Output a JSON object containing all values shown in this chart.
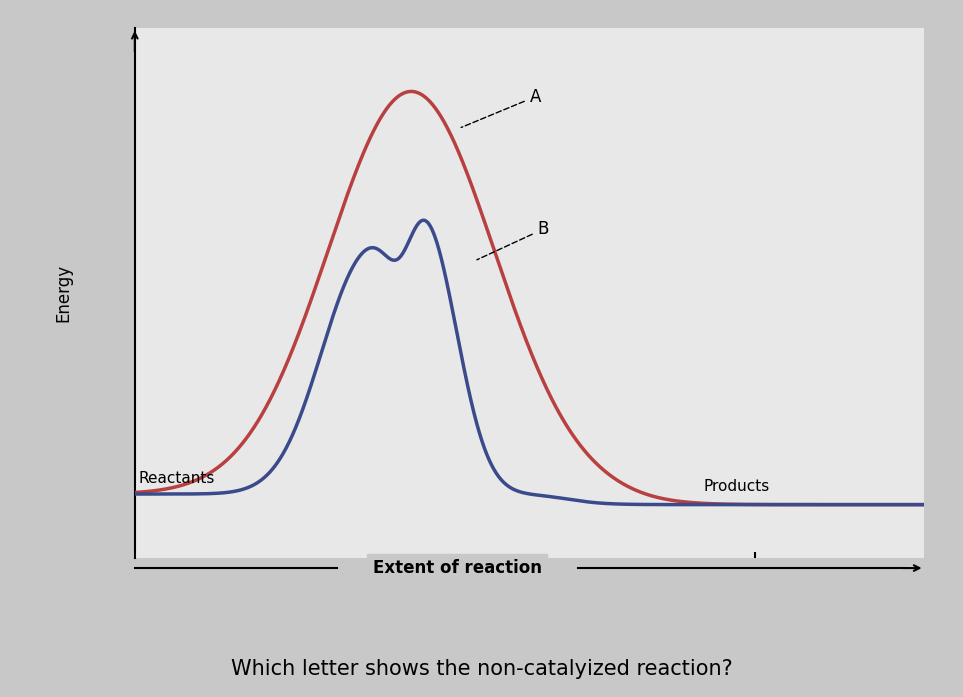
{
  "ylabel": "Energy",
  "xlabel_text": "Extent of reaction",
  "reactants_label": "Reactants",
  "products_label": "Products",
  "label_A": "A",
  "label_B": "B",
  "color_uncatalyzed": "#b84040",
  "color_catalyzed": "#3b4a8a",
  "bg_color": "#c8c8c8",
  "plot_bg_color": "#e8e8e8",
  "question_text": "Which letter shows the non-catalyized reaction?",
  "figsize": [
    9.63,
    6.97
  ],
  "dpi": 100
}
